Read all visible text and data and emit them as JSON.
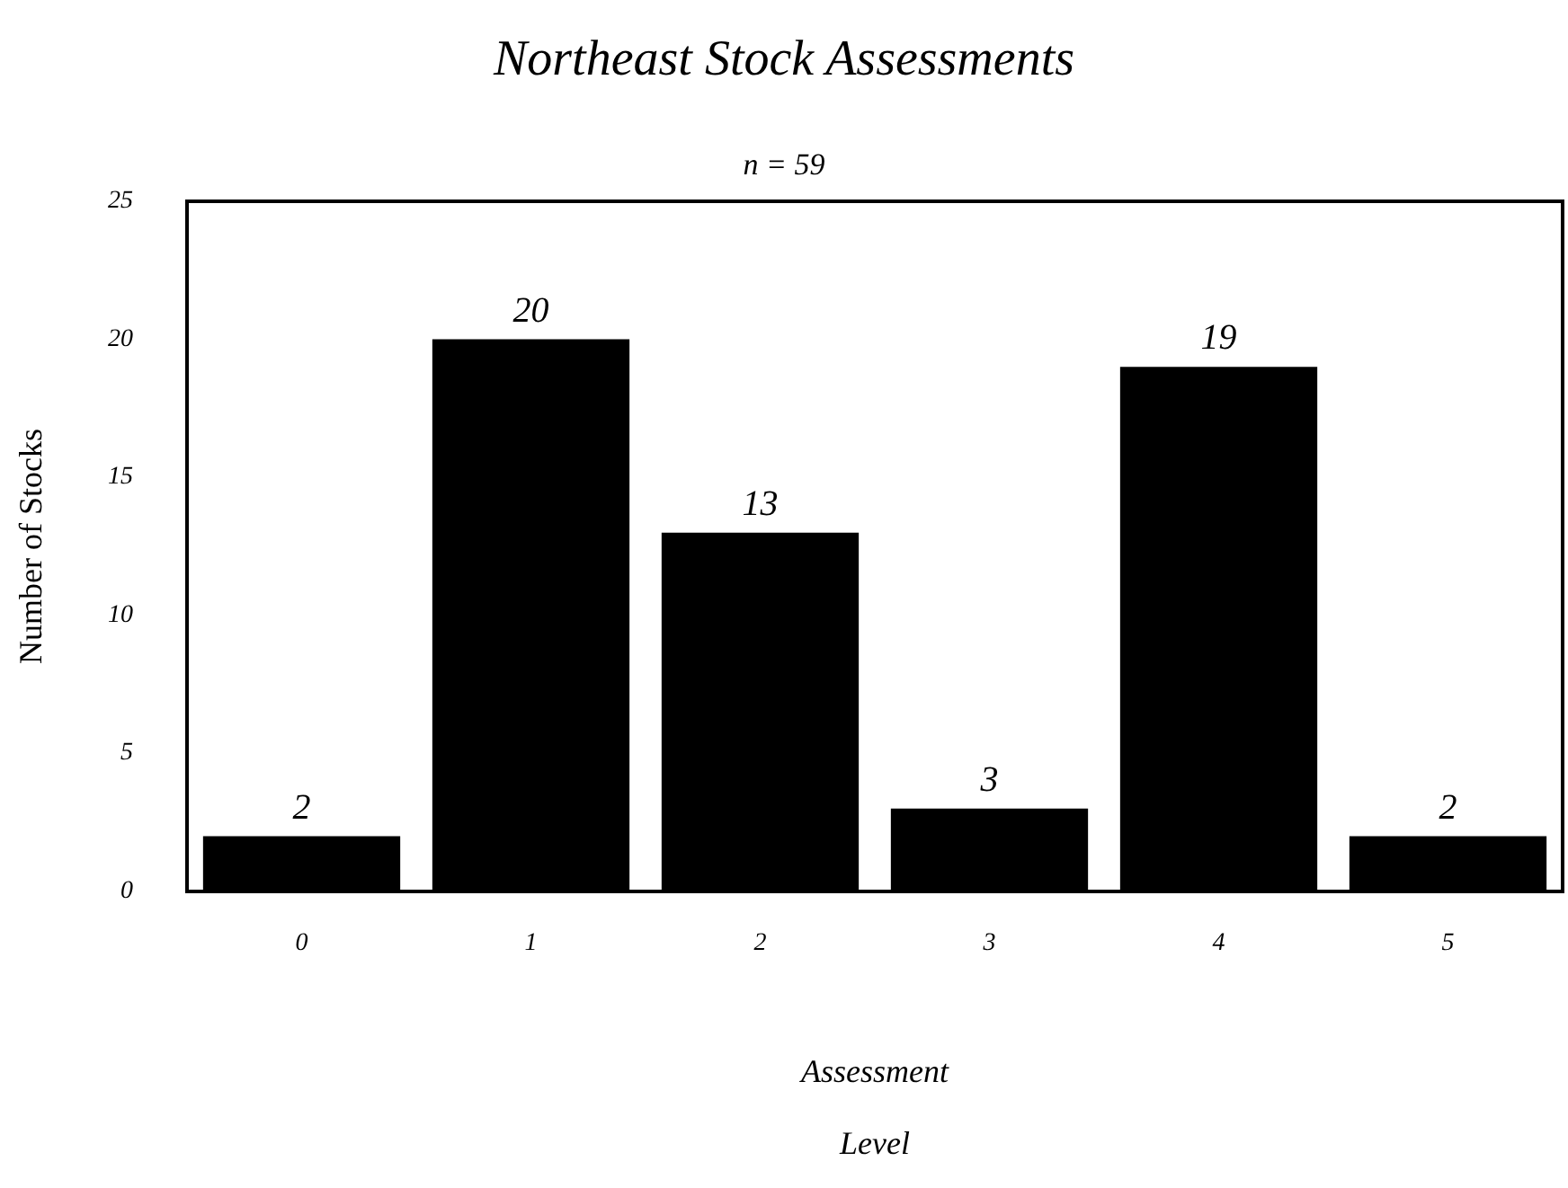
{
  "chart_data": {
    "type": "bar",
    "title": "Northeast Stock Assessments",
    "subtitle": "n = 59",
    "xlabel": "Assessment Level",
    "ylabel": "Number of Stocks",
    "categories": [
      "0",
      "1",
      "2",
      "3",
      "4",
      "5"
    ],
    "values": [
      2,
      20,
      13,
      3,
      19,
      2
    ],
    "color": "#000000",
    "ylim": [
      0,
      25
    ],
    "yticks": [
      0,
      5,
      10,
      15,
      20,
      25
    ],
    "data_labels": true
  }
}
